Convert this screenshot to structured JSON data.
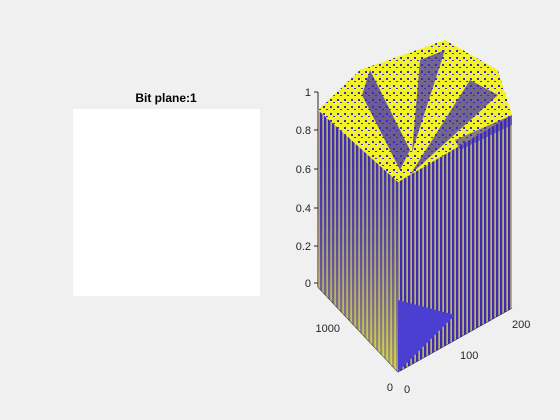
{
  "window": {
    "background": "#f0f0f0"
  },
  "left_axes": {
    "title": "Bit plane:1",
    "image_color": "#ffffff"
  },
  "chart_data": {
    "type": "surface",
    "colors": {
      "low": "#3d2bb8",
      "high": "#f2f22a"
    },
    "z_ticks": [
      "0",
      "0.2",
      "0.4",
      "0.6",
      "0.8",
      "1"
    ],
    "y_ticks": [
      "0",
      "1000"
    ],
    "x_ticks": [
      "0",
      "100",
      "200"
    ],
    "zlim": [
      0,
      1
    ],
    "grid": false
  }
}
